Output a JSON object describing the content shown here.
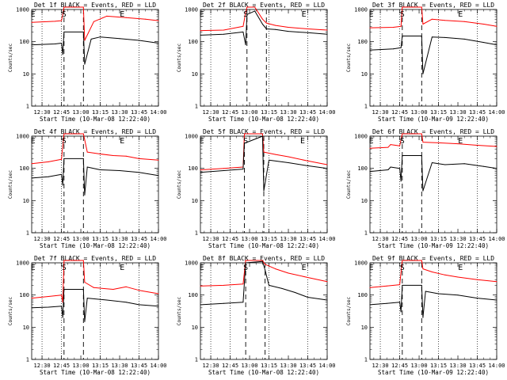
{
  "colors": {
    "events": "#000000",
    "lld": "#ff0000",
    "frame": "#000000",
    "background": "#ffffff"
  },
  "chart_data": [
    {
      "type": "line",
      "title": "Det 1f BLACK = Events, RED = LLD",
      "xlabel": "Start Time (10-Mar-08 12:22:40)",
      "ylabel": "Counts/sec",
      "yscale": "log",
      "ylim": [
        1,
        1000
      ],
      "ytick_labels": [
        "1",
        "10",
        "100",
        "1000"
      ],
      "xlim": [
        "12:22",
        "14:00"
      ],
      "xtick_labels": [
        "12:30",
        "12:45",
        "13:00",
        "13:15",
        "13:30",
        "13:45",
        "14:00"
      ],
      "dotted_lines": [
        "12:30",
        "12:45",
        "13:15",
        "13:45"
      ],
      "dashed_lines": [
        "12:47",
        "13:02"
      ],
      "markers": [
        {
          "label": "E",
          "time": "12:23"
        },
        {
          "label": "S",
          "time": "12:47"
        },
        {
          "label": "E",
          "time": "13:32"
        }
      ],
      "series": [
        {
          "name": "LLD",
          "color": "#ff0000",
          "x": [
            "12:22",
            "12:40",
            "12:45",
            "12:46",
            "12:47",
            "13:02",
            "13:03",
            "13:10",
            "13:20",
            "13:35",
            "13:50",
            "14:00"
          ],
          "y": [
            400,
            430,
            450,
            700,
            1200,
            1200,
            110,
            420,
            620,
            560,
            500,
            450
          ]
        },
        {
          "name": "Events",
          "color": "#000000",
          "x": [
            "12:22",
            "12:40",
            "12:45",
            "12:46",
            "12:47",
            "13:02",
            "13:03",
            "13:08",
            "13:15",
            "13:30",
            "13:45",
            "14:00"
          ],
          "y": [
            80,
            85,
            90,
            40,
            200,
            200,
            20,
            120,
            140,
            125,
            110,
            90
          ]
        }
      ]
    },
    {
      "type": "line",
      "title": "Det 2f BLACK = Events, RED = LLD",
      "xlabel": "Start Time (10-Mar-08 12:22:40)",
      "ylabel": "Counts/sec",
      "yscale": "log",
      "ylim": [
        1,
        1000
      ],
      "ytick_labels": [
        "1",
        "10",
        "100",
        "1000"
      ],
      "xlim": [
        "12:22",
        "14:00"
      ],
      "xtick_labels": [
        "12:30",
        "12:45",
        "13:00",
        "13:15",
        "13:30",
        "13:45",
        "14:00"
      ],
      "dotted_lines": [
        "12:30",
        "12:45",
        "13:15",
        "13:45"
      ],
      "dashed_lines": [
        "12:58",
        "13:13"
      ],
      "markers": [
        {
          "label": "E",
          "time": "12:23"
        },
        {
          "label": "S",
          "time": "12:57"
        },
        {
          "label": "E",
          "time": "13:42"
        }
      ],
      "series": [
        {
          "name": "LLD",
          "color": "#ff0000",
          "x": [
            "12:22",
            "12:40",
            "12:55",
            "12:57",
            "12:58",
            "13:04",
            "13:10",
            "13:13",
            "13:20",
            "13:30",
            "13:45",
            "14:00"
          ],
          "y": [
            220,
            230,
            300,
            800,
            1300,
            1300,
            500,
            380,
            320,
            280,
            250,
            230
          ]
        },
        {
          "name": "Events",
          "color": "#000000",
          "x": [
            "12:22",
            "12:40",
            "12:55",
            "12:57",
            "12:58",
            "13:04",
            "13:10",
            "13:13",
            "13:20",
            "13:30",
            "13:45",
            "14:00"
          ],
          "y": [
            160,
            170,
            200,
            80,
            700,
            900,
            350,
            250,
            240,
            210,
            190,
            170
          ]
        }
      ]
    },
    {
      "type": "line",
      "title": "Det 3f BLACK = Events, RED = LLD",
      "xlabel": "Start Time (10-Mar-09 12:22:40)",
      "ylabel": "Counts/sec",
      "yscale": "log",
      "ylim": [
        1,
        1000
      ],
      "ytick_labels": [
        "1",
        "10",
        "100",
        "1000"
      ],
      "xlim": [
        "12:22",
        "14:00"
      ],
      "xtick_labels": [
        "12:30",
        "12:45",
        "13:00",
        "13:15",
        "13:30",
        "13:45",
        "14:00"
      ],
      "dotted_lines": [
        "12:30",
        "12:45",
        "13:15",
        "13:45"
      ],
      "dashed_lines": [
        "12:47",
        "13:02"
      ],
      "markers": [
        {
          "label": "E",
          "time": "12:23"
        },
        {
          "label": "S",
          "time": "12:47"
        },
        {
          "label": "E",
          "time": "13:32"
        }
      ],
      "series": [
        {
          "name": "LLD",
          "color": "#ff0000",
          "x": [
            "12:22",
            "12:40",
            "12:46",
            "12:47",
            "13:02",
            "13:03",
            "13:10",
            "13:20",
            "13:35",
            "13:50",
            "14:00"
          ],
          "y": [
            270,
            280,
            300,
            1200,
            1200,
            350,
            500,
            460,
            420,
            350,
            300
          ]
        },
        {
          "name": "Events",
          "color": "#000000",
          "x": [
            "12:22",
            "12:40",
            "12:46",
            "12:47",
            "13:02",
            "13:03",
            "13:10",
            "13:20",
            "13:35",
            "13:50",
            "14:00"
          ],
          "y": [
            55,
            60,
            65,
            150,
            150,
            10,
            140,
            135,
            120,
            95,
            80
          ]
        }
      ]
    },
    {
      "type": "line",
      "title": "Det 4f BLACK = Events, RED = LLD",
      "xlabel": "Start Time (10-Mar-08 12:22:40)",
      "ylabel": "Counts/sec",
      "yscale": "log",
      "ylim": [
        1,
        1000
      ],
      "ytick_labels": [
        "1",
        "10",
        "100",
        "1000"
      ],
      "xlim": [
        "12:22",
        "14:00"
      ],
      "xtick_labels": [
        "12:30",
        "12:45",
        "13:00",
        "13:15",
        "13:30",
        "13:45",
        "14:00"
      ],
      "dotted_lines": [
        "12:30",
        "12:45",
        "13:15",
        "13:45"
      ],
      "dashed_lines": [
        "12:47",
        "13:02"
      ],
      "markers": [
        {
          "label": "E",
          "time": "12:23"
        },
        {
          "label": "S",
          "time": "12:47"
        },
        {
          "label": "E",
          "time": "13:32"
        }
      ],
      "series": [
        {
          "name": "LLD",
          "color": "#ff0000",
          "x": [
            "12:22",
            "12:35",
            "12:45",
            "12:47",
            "13:02",
            "13:05",
            "13:15",
            "13:25",
            "13:35",
            "13:45",
            "14:00"
          ],
          "y": [
            140,
            160,
            190,
            1200,
            1200,
            320,
            280,
            250,
            240,
            200,
            180
          ]
        },
        {
          "name": "Events",
          "color": "#000000",
          "x": [
            "12:22",
            "12:35",
            "12:45",
            "12:46",
            "12:47",
            "13:02",
            "13:03",
            "13:05",
            "13:15",
            "13:30",
            "13:45",
            "14:00"
          ],
          "y": [
            50,
            55,
            65,
            30,
            200,
            200,
            15,
            110,
            90,
            85,
            75,
            60
          ]
        }
      ]
    },
    {
      "type": "line",
      "title": "Det 5f BLACK = Events, RED = LLD",
      "xlabel": "Start Time (10-Mar-08 12:22:40)",
      "ylabel": "Counts/sec",
      "yscale": "log",
      "ylim": [
        1,
        1000
      ],
      "ytick_labels": [
        "1",
        "10",
        "100",
        "1000"
      ],
      "xlim": [
        "12:22",
        "14:00"
      ],
      "xtick_labels": [
        "12:30",
        "12:45",
        "13:00",
        "13:15",
        "13:30",
        "13:45",
        "14:00"
      ],
      "dotted_lines": [
        "12:30",
        "12:45",
        "13:15",
        "13:45"
      ],
      "dashed_lines": [
        "12:56",
        "13:11"
      ],
      "markers": [
        {
          "label": "E",
          "time": "12:23"
        },
        {
          "label": "S",
          "time": "12:57"
        },
        {
          "label": "E",
          "time": "13:41"
        }
      ],
      "series": [
        {
          "name": "LLD",
          "color": "#ff0000",
          "x": [
            "12:22",
            "12:40",
            "12:55",
            "12:56",
            "13:10",
            "13:11",
            "13:20",
            "13:30",
            "13:45",
            "14:00"
          ],
          "y": [
            90,
            100,
            110,
            1200,
            1200,
            320,
            270,
            230,
            170,
            130
          ]
        },
        {
          "name": "Events",
          "color": "#000000",
          "x": [
            "12:22",
            "12:40",
            "12:55",
            "12:56",
            "13:10",
            "13:11",
            "13:15",
            "13:30",
            "13:45",
            "14:00"
          ],
          "y": [
            75,
            85,
            95,
            600,
            1000,
            20,
            180,
            150,
            120,
            100
          ]
        }
      ]
    },
    {
      "type": "line",
      "title": "Det 6f BLACK = Events, RED = LLD",
      "xlabel": "Start Time (10-Mar-09 12:22:40)",
      "ylabel": "Counts/sec",
      "yscale": "log",
      "ylim": [
        1,
        1000
      ],
      "ytick_labels": [
        "1",
        "10",
        "100",
        "1000"
      ],
      "xlim": [
        "12:22",
        "14:00"
      ],
      "xtick_labels": [
        "12:30",
        "12:45",
        "13:00",
        "13:15",
        "13:30",
        "13:45",
        "14:00"
      ],
      "dotted_lines": [
        "12:30",
        "12:45",
        "13:15",
        "13:45"
      ],
      "dashed_lines": [
        "12:47",
        "13:02"
      ],
      "markers": [
        {
          "label": "E",
          "time": "12:23"
        },
        {
          "label": "S",
          "time": "12:47"
        },
        {
          "label": "E",
          "time": "13:32"
        }
      ],
      "series": [
        {
          "name": "LLD",
          "color": "#ff0000",
          "x": [
            "12:22",
            "12:36",
            "12:38",
            "12:45",
            "12:47",
            "13:02",
            "13:03",
            "13:15",
            "13:30",
            "13:45",
            "14:00"
          ],
          "y": [
            420,
            450,
            550,
            500,
            1200,
            1200,
            650,
            620,
            580,
            520,
            480
          ]
        },
        {
          "name": "Events",
          "color": "#000000",
          "x": [
            "12:22",
            "12:36",
            "12:38",
            "12:45",
            "12:46",
            "12:47",
            "13:02",
            "13:03",
            "13:10",
            "13:20",
            "13:35",
            "13:50",
            "14:00"
          ],
          "y": [
            80,
            90,
            110,
            100,
            40,
            250,
            250,
            20,
            150,
            130,
            140,
            115,
            100
          ]
        }
      ]
    },
    {
      "type": "line",
      "title": "Det 7f BLACK = Events, RED = LLD",
      "xlabel": "Start Time (10-Mar-08 12:22:40)",
      "ylabel": "Counts/sec",
      "yscale": "log",
      "ylim": [
        1,
        1000
      ],
      "ytick_labels": [
        "1",
        "10",
        "100",
        "1000"
      ],
      "xlim": [
        "12:22",
        "14:00"
      ],
      "xtick_labels": [
        "12:30",
        "12:45",
        "13:00",
        "13:15",
        "13:30",
        "13:45",
        "14:00"
      ],
      "dotted_lines": [
        "12:30",
        "12:45",
        "13:15",
        "13:45"
      ],
      "dashed_lines": [
        "12:47",
        "13:02"
      ],
      "markers": [
        {
          "label": "E",
          "time": "12:23"
        },
        {
          "label": "S",
          "time": "12:47"
        },
        {
          "label": "E",
          "time": "13:32"
        }
      ],
      "series": [
        {
          "name": "LLD",
          "color": "#ff0000",
          "x": [
            "12:22",
            "12:35",
            "12:45",
            "12:46",
            "12:47",
            "13:02",
            "13:03",
            "13:10",
            "13:25",
            "13:35",
            "13:45",
            "14:00"
          ],
          "y": [
            80,
            90,
            100,
            60,
            1200,
            1200,
            250,
            170,
            150,
            180,
            140,
            110
          ]
        },
        {
          "name": "Events",
          "color": "#000000",
          "x": [
            "12:22",
            "12:35",
            "12:45",
            "12:46",
            "12:47",
            "13:02",
            "13:03",
            "13:05",
            "13:20",
            "13:35",
            "13:45",
            "14:00"
          ],
          "y": [
            40,
            42,
            45,
            20,
            150,
            150,
            15,
            80,
            70,
            60,
            50,
            45
          ]
        }
      ]
    },
    {
      "type": "line",
      "title": "Det 8f BLACK = Events, RED = LLD",
      "xlabel": "Start Time (10-Mar-08 12:22:40)",
      "ylabel": "Counts/sec",
      "yscale": "log",
      "ylim": [
        1,
        1000
      ],
      "ytick_labels": [
        "1",
        "10",
        "100",
        "1000"
      ],
      "xlim": [
        "12:22",
        "14:00"
      ],
      "xtick_labels": [
        "12:30",
        "12:45",
        "13:00",
        "13:15",
        "13:30",
        "13:45",
        "14:00"
      ],
      "dotted_lines": [
        "12:30",
        "12:45",
        "13:15",
        "13:45"
      ],
      "dashed_lines": [
        "12:57",
        "13:12"
      ],
      "markers": [
        {
          "label": "E",
          "time": "12:23"
        },
        {
          "label": "S",
          "time": "12:57"
        },
        {
          "label": "E",
          "time": "13:42"
        }
      ],
      "series": [
        {
          "name": "LLD",
          "color": "#ff0000",
          "x": [
            "12:22",
            "12:40",
            "12:55",
            "12:57",
            "13:10",
            "13:12",
            "13:20",
            "13:30",
            "13:45",
            "14:00"
          ],
          "y": [
            190,
            200,
            220,
            1300,
            1300,
            900,
            650,
            480,
            350,
            260
          ]
        },
        {
          "name": "Events",
          "color": "#000000",
          "x": [
            "12:22",
            "12:40",
            "12:55",
            "12:57",
            "13:10",
            "13:12",
            "13:15",
            "13:25",
            "13:35",
            "13:45",
            "14:00"
          ],
          "y": [
            50,
            55,
            60,
            1000,
            1100,
            600,
            200,
            160,
            120,
            85,
            70
          ]
        }
      ]
    },
    {
      "type": "line",
      "title": "Det 9f BLACK = Events, RED = LLD",
      "xlabel": "Start Time (10-Mar-09 12:22:40)",
      "ylabel": "Counts/sec",
      "yscale": "log",
      "ylim": [
        1,
        1000
      ],
      "ytick_labels": [
        "1",
        "10",
        "100",
        "1000"
      ],
      "xlim": [
        "12:22",
        "14:00"
      ],
      "xtick_labels": [
        "12:30",
        "12:45",
        "13:00",
        "13:15",
        "13:30",
        "13:45",
        "14:00"
      ],
      "dotted_lines": [
        "12:30",
        "12:45",
        "13:15",
        "13:45"
      ],
      "dashed_lines": [
        "12:47",
        "13:02"
      ],
      "markers": [
        {
          "label": "E",
          "time": "12:23"
        },
        {
          "label": "S",
          "time": "12:47"
        },
        {
          "label": "E",
          "time": "13:32"
        }
      ],
      "series": [
        {
          "name": "LLD",
          "color": "#ff0000",
          "x": [
            "12:22",
            "12:35",
            "12:45",
            "12:47",
            "13:02",
            "13:03",
            "13:10",
            "13:20",
            "13:30",
            "13:45",
            "14:00"
          ],
          "y": [
            170,
            190,
            210,
            1200,
            1200,
            650,
            520,
            420,
            360,
            300,
            260
          ]
        },
        {
          "name": "Events",
          "color": "#000000",
          "x": [
            "12:22",
            "12:35",
            "12:45",
            "12:46",
            "12:47",
            "13:02",
            "13:03",
            "13:05",
            "13:15",
            "13:30",
            "13:45",
            "14:00"
          ],
          "y": [
            50,
            55,
            60,
            30,
            200,
            200,
            20,
            130,
            110,
            100,
            80,
            70
          ]
        }
      ]
    }
  ]
}
